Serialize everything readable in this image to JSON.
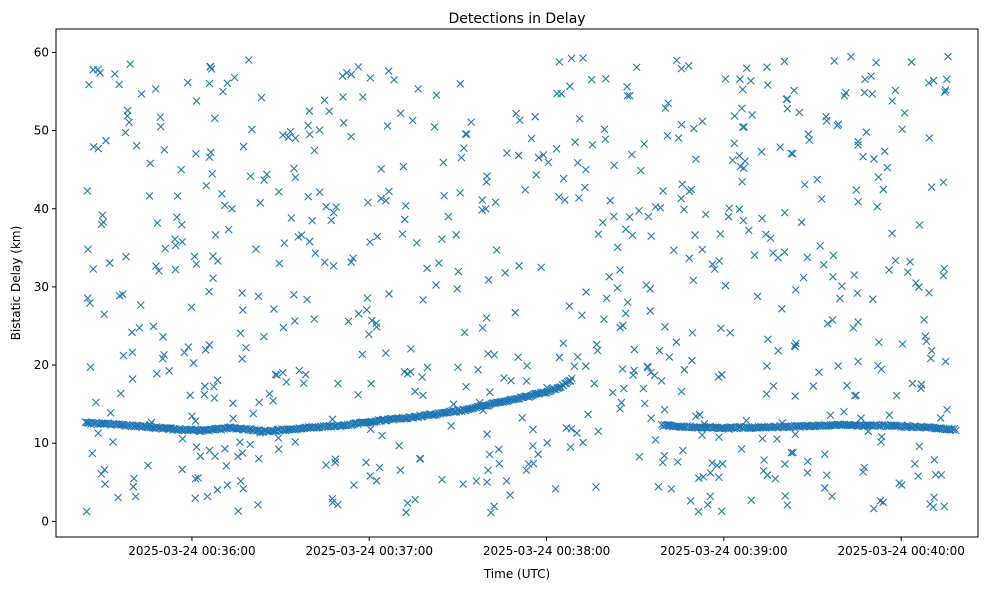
{
  "chart_data": {
    "type": "scatter",
    "title": "Detections in Delay",
    "xlabel": "Time (UTC)",
    "ylabel": "Bistatic Delay (km)",
    "x_range": [
      "2025-03-24 00:35:14",
      "2025-03-24 00:40:26"
    ],
    "ylim": [
      -2,
      63
    ],
    "x_ticks": [
      "2025-03-24 00:36:00",
      "2025-03-24 00:37:00",
      "2025-03-24 00:38:00",
      "2025-03-24 00:39:00",
      "2025-03-24 00:40:00"
    ],
    "y_ticks": [
      0,
      10,
      20,
      30,
      40,
      50,
      60
    ],
    "grid": false,
    "marker": "x",
    "color": "#1f77b4",
    "track": {
      "x": [
        "2025-03-24 00:35:24",
        "2025-03-24 00:35:34",
        "2025-03-24 00:35:44",
        "2025-03-24 00:35:54",
        "2025-03-24 00:36:04",
        "2025-03-24 00:36:14",
        "2025-03-24 00:36:24",
        "2025-03-24 00:36:34",
        "2025-03-24 00:36:44",
        "2025-03-24 00:36:54",
        "2025-03-24 00:37:04",
        "2025-03-24 00:37:14",
        "2025-03-24 00:37:24",
        "2025-03-24 00:37:34",
        "2025-03-24 00:37:44",
        "2025-03-24 00:37:54",
        "2025-03-24 00:38:04",
        "2025-03-24 00:38:09",
        "2025-03-24 00:38:39",
        "2025-03-24 00:38:49",
        "2025-03-24 00:38:59",
        "2025-03-24 00:39:09",
        "2025-03-24 00:39:19",
        "2025-03-24 00:39:29",
        "2025-03-24 00:39:39",
        "2025-03-24 00:39:49",
        "2025-03-24 00:39:59",
        "2025-03-24 00:40:09",
        "2025-03-24 00:40:19"
      ],
      "y": [
        12.6,
        12.4,
        12.1,
        11.8,
        11.6,
        12.0,
        11.5,
        11.8,
        12.1,
        12.4,
        12.9,
        13.3,
        13.8,
        14.4,
        15.2,
        16.0,
        17.0,
        18.3,
        12.3,
        12.1,
        12.0,
        12.0,
        12.1,
        12.2,
        12.3,
        12.3,
        12.2,
        12.0,
        11.7
      ]
    },
    "noise_count": 720
  }
}
